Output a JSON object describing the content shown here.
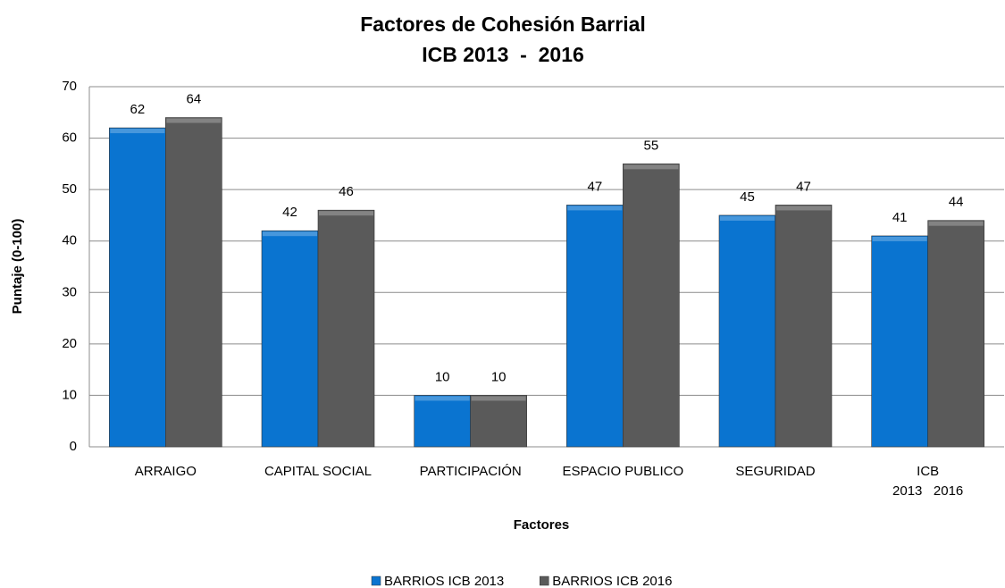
{
  "chart_data": {
    "type": "bar",
    "title": "Factores de Cohesión Barrial",
    "subtitle": "ICB 2013  -  2016",
    "x_label": "Factores",
    "y_label": "Puntaje (0-100)",
    "categories": [
      "ARRAIGO",
      "CAPITAL SOCIAL",
      "PARTICIPACIÓN",
      "ESPACIO PUBLICO",
      "SEGURIDAD",
      "ICB\n2013   2016"
    ],
    "series": [
      {
        "name": "BARRIOS ICB 2013",
        "color": "#0a74d0",
        "values": [
          62,
          42,
          10,
          47,
          45,
          41
        ]
      },
      {
        "name": "BARRIOS ICB 2016",
        "color": "#5a5a5a",
        "values": [
          64,
          46,
          10,
          55,
          47,
          44
        ]
      }
    ],
    "ylim": [
      0,
      70
    ],
    "yticks": [
      0,
      10,
      20,
      30,
      40,
      50,
      60,
      70
    ],
    "grid": true,
    "legend": "bottom"
  }
}
